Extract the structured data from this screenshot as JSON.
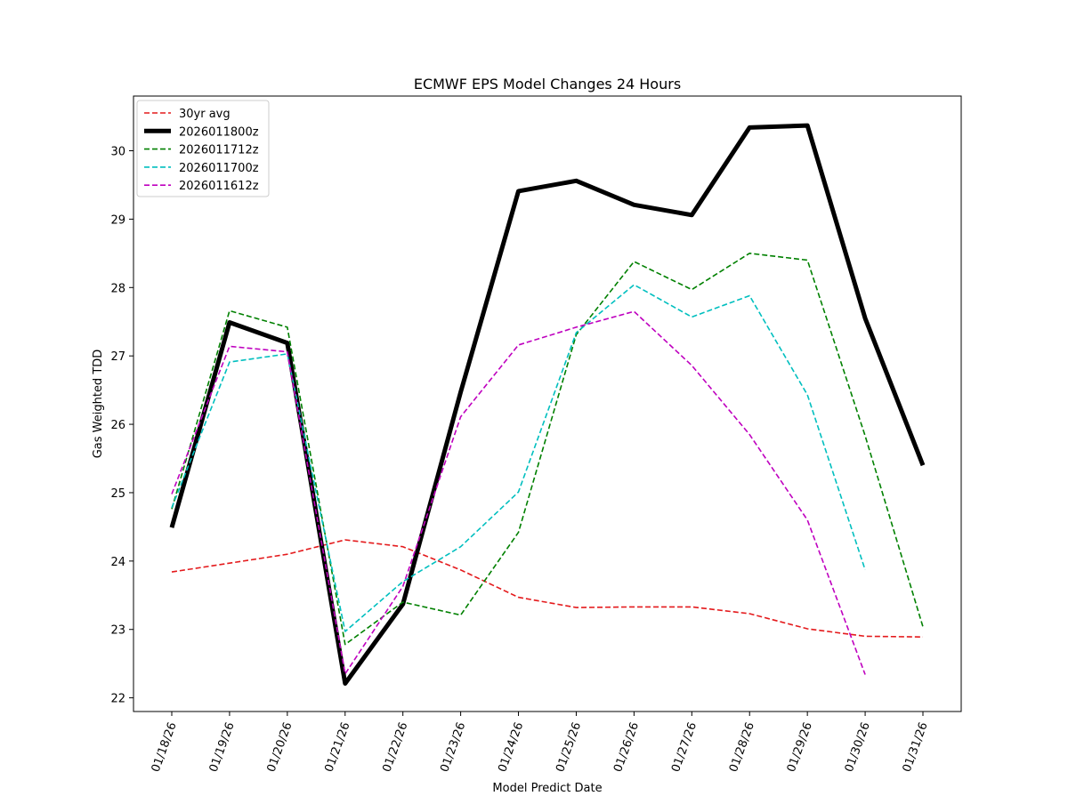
{
  "chart_data": {
    "type": "line",
    "title": "ECMWF EPS Model Changes 24 Hours",
    "xlabel": "Model Predict Date",
    "ylabel": "Gas Weighted TDD",
    "ylim": [
      21.8,
      30.8
    ],
    "yticks": [
      22,
      23,
      24,
      25,
      26,
      27,
      28,
      29,
      30
    ],
    "categories": [
      "01/18/26",
      "01/19/26",
      "01/20/26",
      "01/21/26",
      "01/22/26",
      "01/23/26",
      "01/24/26",
      "01/25/26",
      "01/26/26",
      "01/27/26",
      "01/28/26",
      "01/29/26",
      "01/30/26",
      "01/31/26"
    ],
    "grid": false,
    "legend_position": "top-left",
    "series": [
      {
        "name": "30yr avg",
        "color": "#e41a1c",
        "style": "dashed",
        "width": "thin",
        "values": [
          23.84,
          23.97,
          24.1,
          24.31,
          24.21,
          23.87,
          23.47,
          23.32,
          23.33,
          23.33,
          23.23,
          23.01,
          22.9,
          22.89
        ]
      },
      {
        "name": "2026011800z",
        "color": "#000000",
        "style": "solid",
        "width": "thick",
        "values": [
          24.49,
          27.49,
          27.19,
          22.21,
          23.37,
          26.47,
          29.41,
          29.56,
          29.21,
          29.06,
          30.34,
          30.37,
          27.55,
          25.4
        ]
      },
      {
        "name": "2026011712z",
        "color": "#008000",
        "style": "dashed",
        "width": "thin",
        "values": [
          24.76,
          27.66,
          27.42,
          22.78,
          23.4,
          23.21,
          24.42,
          27.31,
          28.38,
          27.97,
          28.5,
          28.4,
          25.83,
          23.04
        ]
      },
      {
        "name": "2026011700z",
        "color": "#00bfbf",
        "style": "dashed",
        "width": "thin",
        "values": [
          24.78,
          26.91,
          27.03,
          22.97,
          23.7,
          24.21,
          25.01,
          27.34,
          28.04,
          27.57,
          27.88,
          26.43,
          23.87,
          null
        ]
      },
      {
        "name": "2026011612z",
        "color": "#bf00bf",
        "style": "dashed",
        "width": "thin",
        "values": [
          24.98,
          27.14,
          27.06,
          22.35,
          23.63,
          26.11,
          27.16,
          27.42,
          27.65,
          26.86,
          25.85,
          24.6,
          22.34,
          null
        ]
      }
    ]
  }
}
